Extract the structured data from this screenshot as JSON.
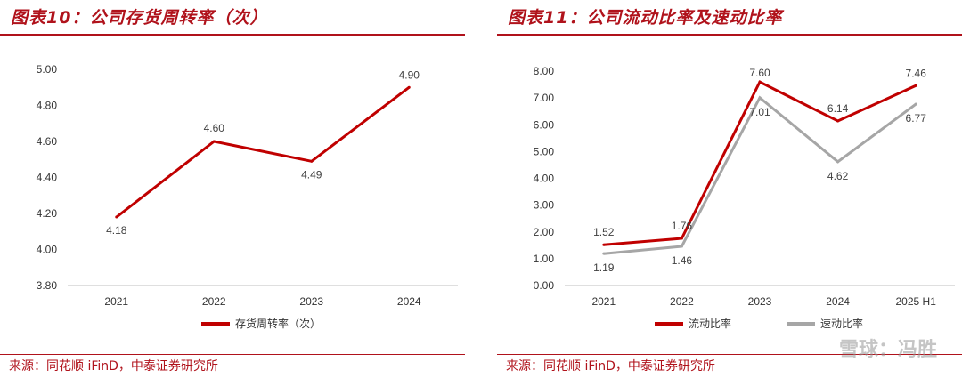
{
  "left": {
    "title": "图表10：公司存货周转率（次）",
    "source": "来源：同花顺 iFinD，中泰证券研究所",
    "chart_data": {
      "type": "line",
      "categories": [
        "2021",
        "2022",
        "2023",
        "2024"
      ],
      "series": [
        {
          "name": "存货周转率（次）",
          "values": [
            4.18,
            4.6,
            4.49,
            4.9
          ],
          "color": "#c00000"
        }
      ],
      "data_labels": [
        "4.18",
        "4.60",
        "4.49",
        "4.90"
      ],
      "y_ticks": [
        "3.80",
        "4.00",
        "4.20",
        "4.40",
        "4.60",
        "4.80",
        "5.00"
      ],
      "ylim": [
        3.8,
        5.0
      ],
      "legend_position": "bottom"
    }
  },
  "right": {
    "title": "图表11：公司流动比率及速动比率",
    "source": "来源：同花顺 iFinD，中泰证券研究所",
    "chart_data": {
      "type": "line",
      "categories": [
        "2021",
        "2022",
        "2023",
        "2024",
        "2025 H1"
      ],
      "series": [
        {
          "name": "流动比率",
          "values": [
            1.52,
            1.76,
            7.6,
            6.14,
            7.46
          ],
          "color": "#c00000",
          "data_labels": [
            "1.52",
            "1.76",
            "7.60",
            "6.14",
            "7.46"
          ]
        },
        {
          "name": "速动比率",
          "values": [
            1.19,
            1.46,
            7.01,
            4.62,
            6.77
          ],
          "color": "#a6a6a6",
          "data_labels": [
            "1.19",
            "1.46",
            "7.01",
            "4.62",
            "6.77"
          ]
        }
      ],
      "y_ticks": [
        "0.00",
        "1.00",
        "2.00",
        "3.00",
        "4.00",
        "5.00",
        "6.00",
        "7.00",
        "8.00"
      ],
      "ylim": [
        0,
        8
      ],
      "legend_position": "bottom"
    }
  },
  "watermark": "雪球：冯胜"
}
